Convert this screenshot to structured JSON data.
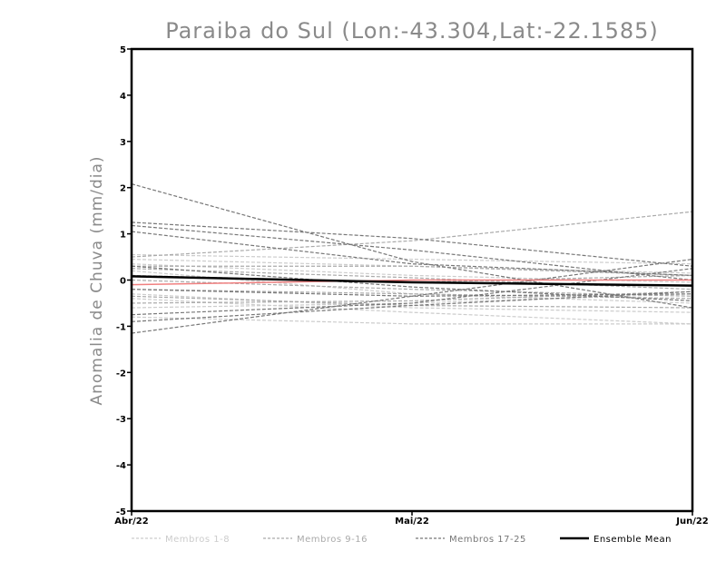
{
  "chart_data": {
    "type": "line",
    "title": "Paraiba do Sul (Lon:-43.304,Lat:-22.1585)",
    "xlabel": "",
    "ylabel": "Anomalia de Chuva (mm/dia)",
    "categories": [
      "Abr/22",
      "Mai/22",
      "Jun/22"
    ],
    "ylim": [
      -5,
      5
    ],
    "yticks": [
      5,
      4,
      3,
      2,
      1,
      0,
      -1,
      -2,
      -3,
      -4,
      -5
    ],
    "grid": false,
    "legend_position": "bottom",
    "legend": [
      {
        "label": "Membros 1-8",
        "color": "#cccccc",
        "dash": true
      },
      {
        "label": "Membros 9-16",
        "color": "#aaaaaa",
        "dash": true
      },
      {
        "label": "Membros 17-25",
        "color": "#777777",
        "dash": true
      },
      {
        "label": "Ensemble Mean",
        "color": "#000000",
        "dash": false
      }
    ],
    "groups": [
      {
        "color": "#cccccc",
        "members": [
          [
            0.55,
            0.45,
            0.35
          ],
          [
            0.45,
            0.3,
            0.15
          ],
          [
            0.35,
            0.1,
            -0.05
          ],
          [
            -0.3,
            -0.6,
            -0.7
          ],
          [
            -0.6,
            -0.5,
            -0.3
          ],
          [
            0.2,
            -0.3,
            -0.5
          ],
          [
            -0.4,
            -0.7,
            -0.95
          ],
          [
            -0.8,
            -0.95,
            -0.95
          ]
        ]
      },
      {
        "color": "#aaaaaa",
        "members": [
          [
            0.5,
            0.85,
            1.48
          ],
          [
            0.3,
            0.3,
            0.1
          ],
          [
            -0.35,
            -0.55,
            -0.6
          ],
          [
            0.0,
            -0.2,
            -0.35
          ],
          [
            -0.2,
            -0.3,
            -0.4
          ],
          [
            0.1,
            -0.05,
            0.1
          ],
          [
            -0.5,
            -0.45,
            -0.25
          ],
          [
            0.25,
            0.05,
            -0.2
          ]
        ]
      },
      {
        "color": "#777777",
        "members": [
          [
            2.08,
            0.4,
            -0.6
          ],
          [
            1.25,
            0.9,
            0.3
          ],
          [
            1.18,
            0.65,
            0.0
          ],
          [
            1.05,
            0.35,
            0.1
          ],
          [
            -0.75,
            -0.5,
            0.25
          ],
          [
            -1.15,
            -0.35,
            0.45
          ],
          [
            -0.9,
            -0.55,
            -0.25
          ],
          [
            0.3,
            -0.15,
            -0.45
          ],
          [
            -0.2,
            -0.35,
            -0.3
          ]
        ]
      }
    ],
    "highlight": {
      "name": "",
      "color": "#f08080",
      "values": [
        -0.1,
        0.0,
        0.0
      ]
    },
    "ensemble_mean": {
      "name": "Ensemble Mean",
      "color": "#000000",
      "values": [
        0.08,
        -0.05,
        -0.12
      ]
    }
  }
}
